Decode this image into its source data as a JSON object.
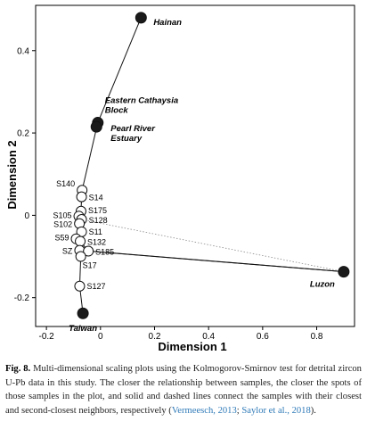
{
  "chart_data": {
    "type": "scatter",
    "title": "",
    "xlabel": "Dimension 1",
    "ylabel": "Dimension 2",
    "xlim": [
      -0.24,
      0.94
    ],
    "ylim": [
      -0.27,
      0.51
    ],
    "xticks": [
      -0.2,
      0,
      0.2,
      0.4,
      0.6,
      0.8
    ],
    "xtick_labels": [
      "-0.2",
      "0",
      "0.2",
      "0.4",
      "0.6",
      "0.8"
    ],
    "yticks": [
      -0.2,
      0,
      0.2,
      0.4
    ],
    "ytick_labels": [
      "-0.2",
      "0",
      "0.2",
      "0.4"
    ],
    "points": [
      {
        "id": "hainan",
        "label": "Hainan",
        "x": 0.15,
        "y": 0.48,
        "kind": "region"
      },
      {
        "id": "cathaysia",
        "label": "Eastern Cathaysia Block",
        "x": -0.01,
        "y": 0.225,
        "kind": "region"
      },
      {
        "id": "pearl",
        "label": "Pearl River Estuary",
        "x": -0.015,
        "y": 0.215,
        "kind": "region"
      },
      {
        "id": "luzon",
        "label": "Luzon",
        "x": 0.9,
        "y": -0.137,
        "kind": "region"
      },
      {
        "id": "taiwan",
        "label": "Taiwan",
        "x": -0.065,
        "y": -0.238,
        "kind": "region"
      },
      {
        "id": "s140",
        "label": "S140",
        "x": -0.068,
        "y": 0.061,
        "kind": "sample"
      },
      {
        "id": "s14",
        "label": "S14",
        "x": -0.07,
        "y": 0.045,
        "kind": "sample"
      },
      {
        "id": "s175",
        "label": "S175",
        "x": -0.072,
        "y": 0.01,
        "kind": "sample"
      },
      {
        "id": "s105",
        "label": "S105",
        "x": -0.08,
        "y": -0.002,
        "kind": "sample"
      },
      {
        "id": "s128",
        "label": "S128",
        "x": -0.07,
        "y": -0.01,
        "kind": "sample"
      },
      {
        "id": "s102",
        "label": "S102",
        "x": -0.078,
        "y": -0.02,
        "kind": "sample"
      },
      {
        "id": "s11",
        "label": "S11",
        "x": -0.07,
        "y": -0.04,
        "kind": "sample"
      },
      {
        "id": "s59",
        "label": "S59",
        "x": -0.09,
        "y": -0.057,
        "kind": "sample"
      },
      {
        "id": "s132",
        "label": "S132",
        "x": -0.075,
        "y": -0.063,
        "kind": "sample"
      },
      {
        "id": "sz",
        "label": "SZ",
        "x": -0.077,
        "y": -0.085,
        "kind": "sample"
      },
      {
        "id": "s185",
        "label": "S185",
        "x": -0.045,
        "y": -0.087,
        "kind": "sample"
      },
      {
        "id": "s17",
        "label": "S17",
        "x": -0.073,
        "y": -0.1,
        "kind": "sample"
      },
      {
        "id": "s127",
        "label": "S127",
        "x": -0.077,
        "y": -0.172,
        "kind": "sample"
      }
    ],
    "solid_links": [
      [
        "hainan",
        "cathaysia"
      ],
      [
        "cathaysia",
        "s140"
      ],
      [
        "s140",
        "s14"
      ],
      [
        "s14",
        "s175"
      ],
      [
        "s175",
        "s105"
      ],
      [
        "s105",
        "s102"
      ],
      [
        "s102",
        "s11"
      ],
      [
        "s11",
        "s59"
      ],
      [
        "s59",
        "sz"
      ],
      [
        "sz",
        "s17"
      ],
      [
        "s17",
        "s127"
      ],
      [
        "s127",
        "taiwan"
      ],
      [
        "s128",
        "s11"
      ],
      [
        "s132",
        "s185"
      ],
      [
        "s185",
        "luzon"
      ],
      [
        "sz",
        "luzon"
      ]
    ],
    "dashed_links": [
      [
        "s128",
        "luzon"
      ],
      [
        "s140",
        "s175"
      ],
      [
        "s105",
        "s128"
      ]
    ]
  },
  "caption": {
    "label": "Fig. 8.",
    "text": "Multi-dimensional scaling plots using the Kolmogorov-Smirnov test for detrital zircon U-Pb data in this study. The closer the relationship between samples, the closer the spots of those samples in the plot, and solid and dashed lines connect the samples with their closest and second-closest neighbors, respectively (",
    "ref1": "Vermeesch, 2013",
    "sep": "; ",
    "ref2": "Saylor et al., 2018",
    "end": ")."
  }
}
